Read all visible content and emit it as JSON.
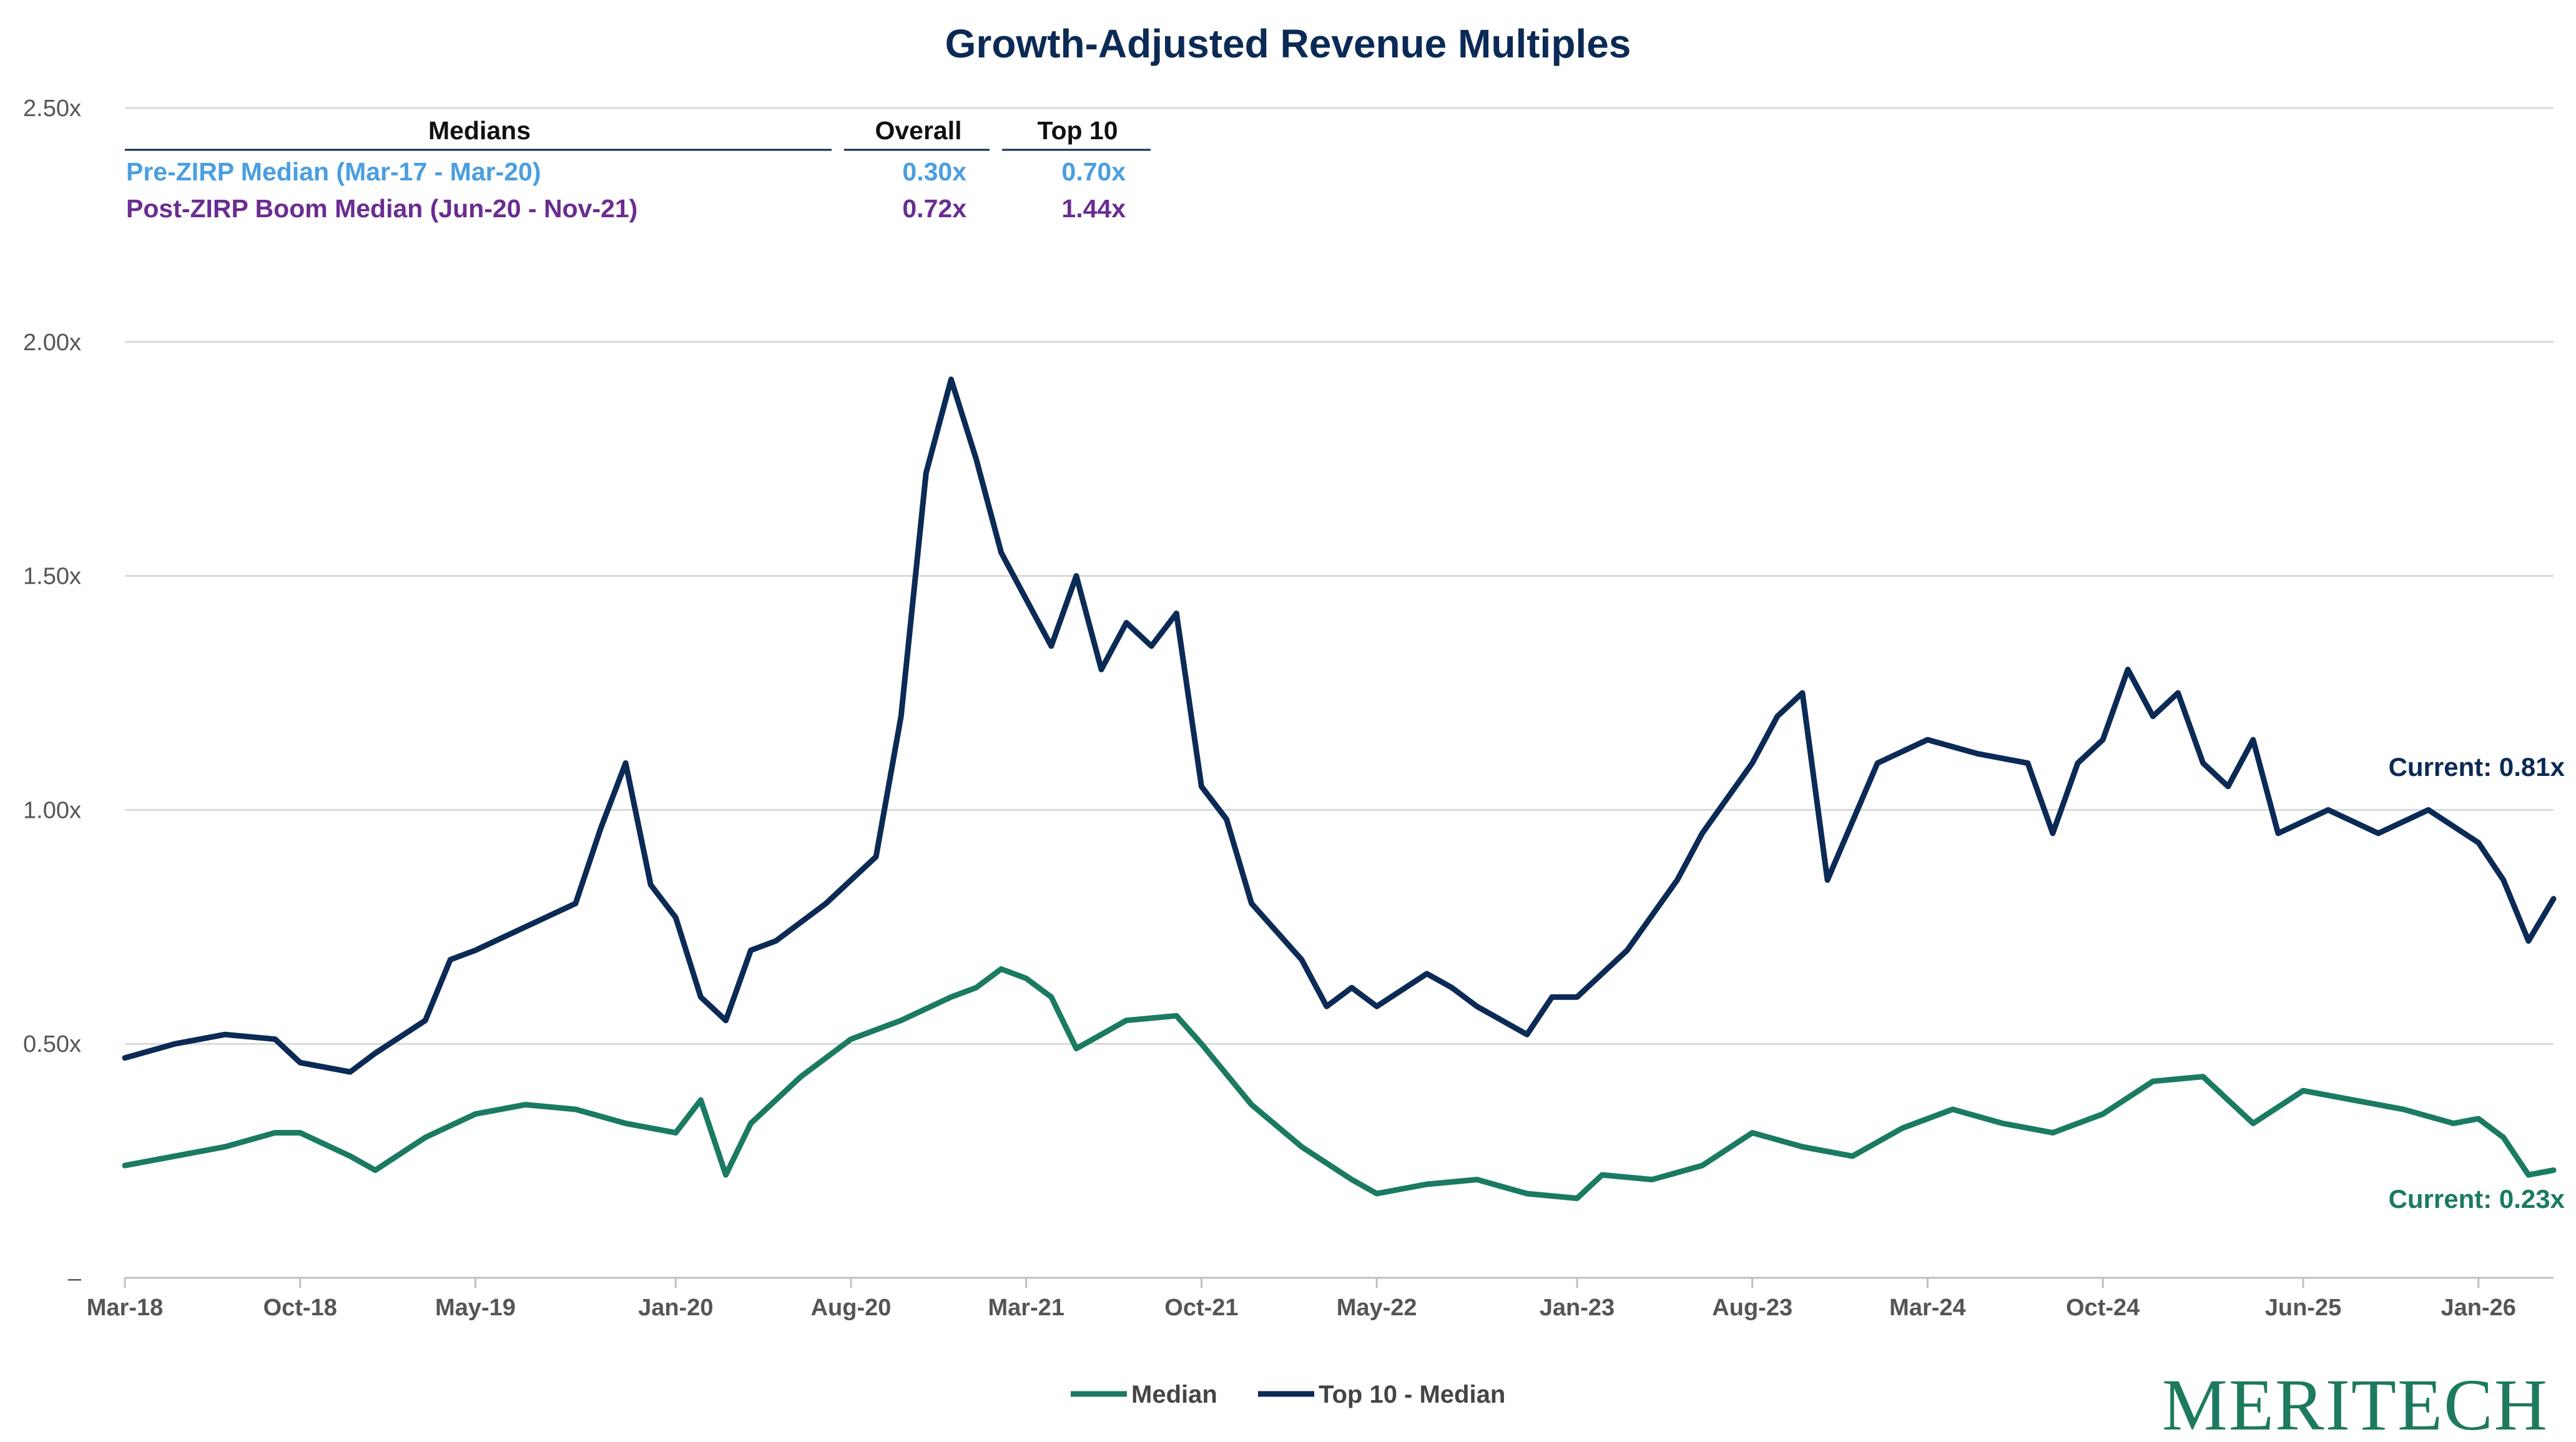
{
  "chart_data": {
    "type": "line",
    "title": "Growth-Adjusted Revenue Multiples",
    "y_tick_labels": [
      "–",
      "0.50x",
      "1.00x",
      "1.50x",
      "2.00x",
      "2.50x"
    ],
    "ylim": [
      0,
      2.5
    ],
    "x_tick_labels": [
      "Mar-18",
      "Oct-18",
      "May-19",
      "Jan-20",
      "Aug-20",
      "Mar-21",
      "Oct-21",
      "May-22",
      "Jan-23",
      "Aug-23",
      "Mar-24",
      "Oct-24",
      "Jun-25",
      "Jan-26"
    ],
    "xlim": [
      "2018-03",
      "2026-04"
    ],
    "grid": "horizontal",
    "legend_position": "bottom-center",
    "series": [
      {
        "name": "Median",
        "color": "#1a7a62",
        "x": [
          "2018-03",
          "2018-05",
          "2018-07",
          "2018-09",
          "2018-10",
          "2018-12",
          "2019-01",
          "2019-03",
          "2019-05",
          "2019-07",
          "2019-09",
          "2019-11",
          "2020-01",
          "2020-02",
          "2020-03",
          "2020-04",
          "2020-06",
          "2020-08",
          "2020-10",
          "2020-12",
          "2021-01",
          "2021-02",
          "2021-03",
          "2021-04",
          "2021-05",
          "2021-07",
          "2021-09",
          "2021-10",
          "2021-12",
          "2022-02",
          "2022-04",
          "2022-05",
          "2022-07",
          "2022-09",
          "2022-11",
          "2023-01",
          "2023-02",
          "2023-04",
          "2023-06",
          "2023-08",
          "2023-10",
          "2023-12",
          "2024-02",
          "2024-04",
          "2024-06",
          "2024-08",
          "2024-10",
          "2024-12",
          "2025-02",
          "2025-04",
          "2025-06",
          "2025-08",
          "2025-10",
          "2025-12",
          "2026-01",
          "2026-02",
          "2026-03",
          "2026-04"
        ],
        "values": [
          0.24,
          0.26,
          0.28,
          0.31,
          0.31,
          0.26,
          0.23,
          0.3,
          0.35,
          0.37,
          0.36,
          0.33,
          0.31,
          0.38,
          0.22,
          0.33,
          0.43,
          0.51,
          0.55,
          0.6,
          0.62,
          0.66,
          0.64,
          0.6,
          0.49,
          0.55,
          0.56,
          0.5,
          0.37,
          0.28,
          0.21,
          0.18,
          0.2,
          0.21,
          0.18,
          0.17,
          0.22,
          0.21,
          0.24,
          0.31,
          0.28,
          0.26,
          0.32,
          0.36,
          0.33,
          0.31,
          0.35,
          0.42,
          0.43,
          0.33,
          0.4,
          0.38,
          0.36,
          0.33,
          0.34,
          0.3,
          0.22,
          0.23
        ]
      },
      {
        "name": "Top 10 - Median",
        "color": "#0b2a55",
        "x": [
          "2018-03",
          "2018-05",
          "2018-07",
          "2018-09",
          "2018-10",
          "2018-12",
          "2019-01",
          "2019-03",
          "2019-04",
          "2019-05",
          "2019-07",
          "2019-09",
          "2019-10",
          "2019-11",
          "2019-12",
          "2020-01",
          "2020-02",
          "2020-03",
          "2020-04",
          "2020-05",
          "2020-07",
          "2020-09",
          "2020-10",
          "2020-11",
          "2020-12",
          "2021-01",
          "2021-02",
          "2021-03",
          "2021-04",
          "2021-05",
          "2021-06",
          "2021-07",
          "2021-08",
          "2021-09",
          "2021-10",
          "2021-11",
          "2021-12",
          "2022-02",
          "2022-03",
          "2022-04",
          "2022-05",
          "2022-07",
          "2022-08",
          "2022-09",
          "2022-10",
          "2022-11",
          "2022-12",
          "2023-01",
          "2023-03",
          "2023-05",
          "2023-06",
          "2023-08",
          "2023-09",
          "2023-10",
          "2023-11",
          "2024-01",
          "2024-03",
          "2024-05",
          "2024-07",
          "2024-08",
          "2024-09",
          "2024-10",
          "2024-11",
          "2024-12",
          "2025-01",
          "2025-02",
          "2025-03",
          "2025-04",
          "2025-05",
          "2025-07",
          "2025-09",
          "2025-11",
          "2026-01",
          "2026-02",
          "2026-03",
          "2026-04"
        ],
        "values": [
          0.47,
          0.5,
          0.52,
          0.51,
          0.46,
          0.44,
          0.48,
          0.55,
          0.68,
          0.7,
          0.75,
          0.8,
          0.96,
          1.1,
          0.84,
          0.77,
          0.6,
          0.55,
          0.7,
          0.72,
          0.8,
          0.9,
          1.2,
          1.72,
          1.92,
          1.75,
          1.55,
          1.45,
          1.35,
          1.5,
          1.3,
          1.4,
          1.35,
          1.42,
          1.05,
          0.98,
          0.8,
          0.68,
          0.58,
          0.62,
          0.58,
          0.65,
          0.62,
          0.58,
          0.55,
          0.52,
          0.6,
          0.6,
          0.7,
          0.85,
          0.95,
          1.1,
          1.2,
          1.25,
          0.85,
          1.1,
          1.15,
          1.12,
          1.1,
          0.95,
          1.1,
          1.15,
          1.3,
          1.2,
          1.25,
          1.1,
          1.05,
          1.15,
          0.95,
          1.0,
          0.95,
          1.0,
          0.93,
          0.85,
          0.72,
          0.81
        ]
      }
    ],
    "annotations": {
      "current_top10": "Current: 0.81x",
      "current_median": "Current: 0.23x"
    }
  },
  "medians_table": {
    "header_label": "Medians",
    "col_overall": "Overall",
    "col_top10": "Top 10",
    "rows": [
      {
        "label": "Pre-ZIRP Median (Mar-17 - Mar-20)",
        "overall": "0.30x",
        "top10": "0.70x",
        "color": "#4a9ee0"
      },
      {
        "label": "Post-ZIRP Boom Median (Jun-20 - Nov-21)",
        "overall": "0.72x",
        "top10": "1.44x",
        "color": "#6a2c91"
      }
    ]
  },
  "legend": {
    "median_label": "Median",
    "top10_label": "Top 10 - Median"
  },
  "brand": {
    "logo_text": "MERITECH"
  }
}
